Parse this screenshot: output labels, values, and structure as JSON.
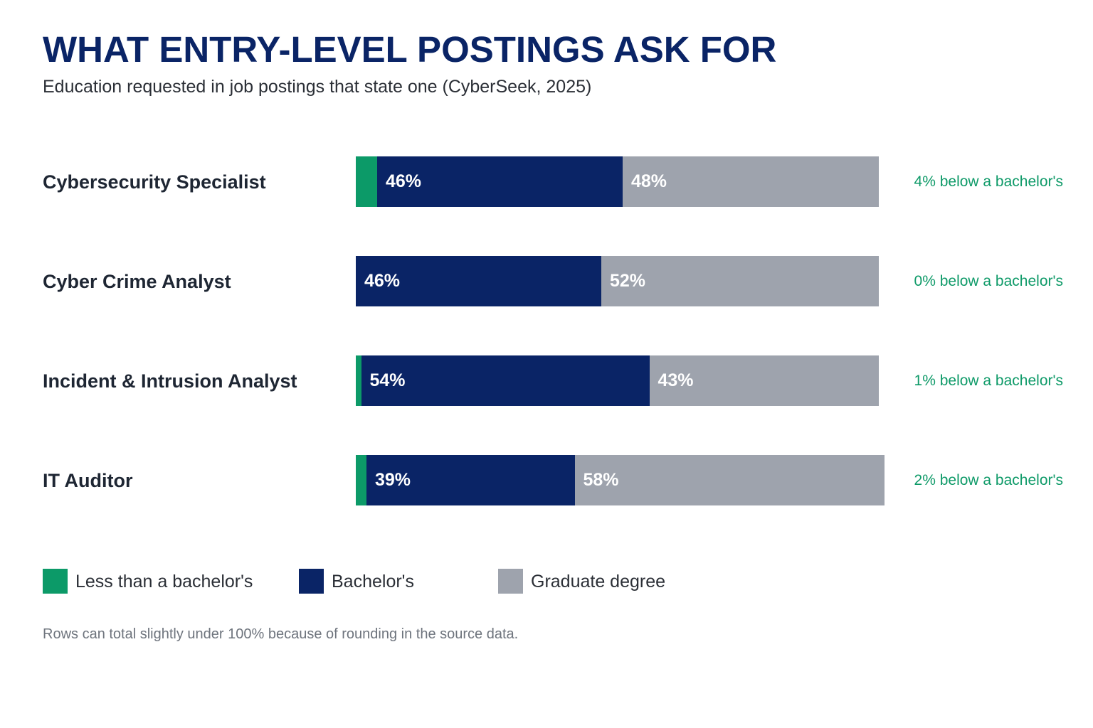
{
  "title": "WHAT ENTRY-LEVEL POSTINGS ASK FOR",
  "subtitle": "Education requested in job postings that state one (CyberSeek, 2025)",
  "footnote": "Rows can total slightly under 100% because of rounding in the source data.",
  "colors": {
    "less_than_bachelors": "#0c9a68",
    "bachelors": "#0a2466",
    "graduate": "#9ea3ad",
    "note_text": "#0e9a68",
    "title": "#0a2466"
  },
  "chart_data": {
    "type": "bar",
    "orientation": "horizontal",
    "stacked": true,
    "categories": [
      "Cybersecurity Specialist",
      "Cyber Crime Analyst",
      "Incident & Intrusion Analyst",
      "IT Auditor"
    ],
    "series": [
      {
        "name": "Less than a bachelor's",
        "values": [
          4,
          0,
          1,
          2
        ],
        "show_label": false
      },
      {
        "name": "Bachelor's",
        "values": [
          46,
          46,
          54,
          39
        ],
        "show_label": true
      },
      {
        "name": "Graduate degree",
        "values": [
          48,
          52,
          43,
          58
        ],
        "show_label": true
      }
    ],
    "notes": [
      "4% below a bachelor's",
      "0% below a bachelor's",
      "1% below a bachelor's",
      "2% below a bachelor's"
    ],
    "xlim": [
      0,
      100
    ],
    "axis_visible": false,
    "grid": false,
    "legend_position": "bottom-left"
  }
}
